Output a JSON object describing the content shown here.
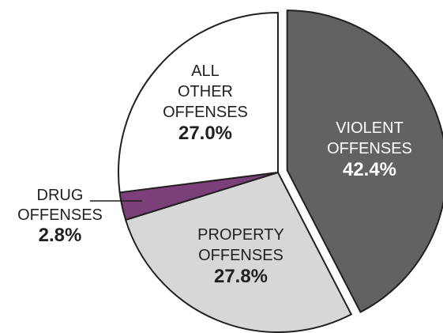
{
  "chart_data": {
    "type": "pie",
    "title": "",
    "slices": [
      {
        "label_lines": [
          "VIOLENT",
          "OFFENSES"
        ],
        "value_label": "42.4%",
        "value": 42.4,
        "color": "#626262",
        "text_color": "#ffffff",
        "exploded": true
      },
      {
        "label_lines": [
          "PROPERTY",
          "OFFENSES"
        ],
        "value_label": "27.8%",
        "value": 27.8,
        "color": "#d7d7d7",
        "text_color": "#231f20",
        "exploded": false
      },
      {
        "label_lines": [
          "DRUG",
          "OFFENSES"
        ],
        "value_label": "2.8%",
        "value": 2.8,
        "color": "#7b3f7a",
        "text_color": "#231f20",
        "exploded": false
      },
      {
        "label_lines": [
          "ALL",
          "OTHER",
          "OFFENSES"
        ],
        "value_label": "27.0%",
        "value": 27.0,
        "color": "#ffffff",
        "text_color": "#231f20",
        "exploded": false
      }
    ]
  }
}
